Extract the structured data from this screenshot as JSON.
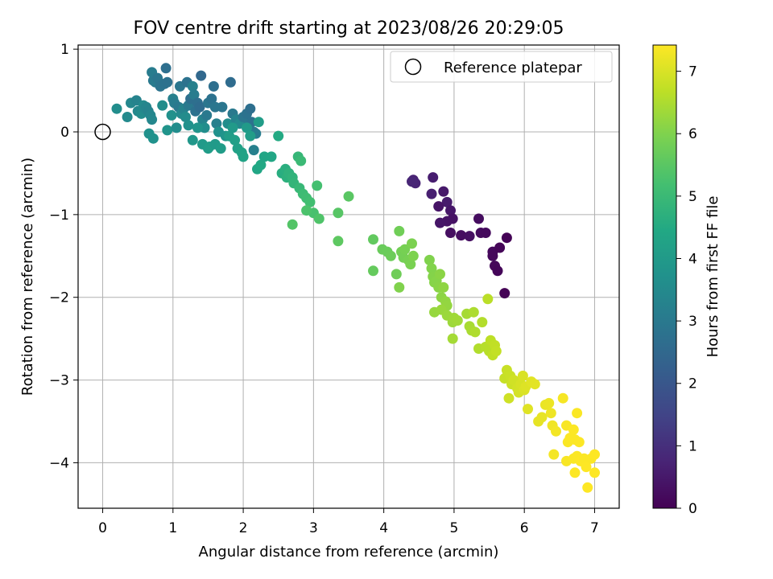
{
  "chart_data": {
    "type": "scatter",
    "title": "FOV centre drift starting at 2023/08/26 20:29:05",
    "xlabel": "Angular distance from reference (arcmin)",
    "ylabel": "Rotation from reference (arcmin)",
    "colorbar_label": "Hours from first FF file",
    "xlim": [
      -0.35,
      7.35
    ],
    "ylim": [
      -4.55,
      1.05
    ],
    "clim": [
      0,
      7.42
    ],
    "x_ticks": [
      0,
      1,
      2,
      3,
      4,
      5,
      6,
      7
    ],
    "x_tick_labels": [
      "0",
      "1",
      "2",
      "3",
      "4",
      "5",
      "6",
      "7"
    ],
    "y_ticks": [
      1,
      0,
      -1,
      -2,
      -3,
      -4
    ],
    "y_tick_labels": [
      "1",
      "0",
      "−1",
      "−2",
      "−3",
      "−4"
    ],
    "colorbar_ticks": [
      0,
      1,
      2,
      3,
      4,
      5,
      6,
      7
    ],
    "colorbar_tick_labels": [
      "0",
      "1",
      "2",
      "3",
      "4",
      "5",
      "6",
      "7"
    ],
    "colormap": "viridis",
    "grid": true,
    "legend": {
      "label": "Reference platepar",
      "placement": "top-right"
    },
    "reference_point": {
      "x": 0,
      "y": 0
    },
    "points": [
      [
        4.42,
        -0.58,
        0.7
      ],
      [
        4.45,
        -0.62,
        0.75
      ],
      [
        4.4,
        -0.6,
        0.78
      ],
      [
        4.7,
        -0.55,
        0.6
      ],
      [
        4.68,
        -0.75,
        0.65
      ],
      [
        4.85,
        -0.72,
        0.5
      ],
      [
        4.9,
        -0.85,
        0.55
      ],
      [
        4.95,
        -0.95,
        0.45
      ],
      [
        4.78,
        -0.9,
        0.4
      ],
      [
        4.9,
        -1.08,
        0.38
      ],
      [
        4.98,
        -1.05,
        0.36
      ],
      [
        4.8,
        -1.1,
        0.42
      ],
      [
        4.95,
        -1.22,
        0.3
      ],
      [
        5.1,
        -1.25,
        0.28
      ],
      [
        5.22,
        -1.26,
        0.32
      ],
      [
        5.35,
        -1.05,
        0.25
      ],
      [
        5.38,
        -1.22,
        0.22
      ],
      [
        5.45,
        -1.22,
        0.2
      ],
      [
        5.55,
        -1.45,
        0.18
      ],
      [
        5.55,
        -1.5,
        0.15
      ],
      [
        5.58,
        -1.62,
        0.12
      ],
      [
        5.65,
        -1.4,
        0.1
      ],
      [
        5.62,
        -1.68,
        0.08
      ],
      [
        5.75,
        -1.28,
        0.05
      ],
      [
        5.72,
        -1.95,
        0.02
      ],
      [
        0.2,
        0.28,
        3.6
      ],
      [
        0.35,
        0.18,
        3.5
      ],
      [
        0.4,
        0.35,
        3.4
      ],
      [
        0.48,
        0.38,
        3.3
      ],
      [
        0.5,
        0.25,
        3.45
      ],
      [
        0.55,
        0.22,
        3.55
      ],
      [
        0.58,
        0.32,
        3.5
      ],
      [
        0.6,
        0.28,
        3.4
      ],
      [
        0.62,
        0.3,
        3.35
      ],
      [
        0.65,
        0.25,
        3.3
      ],
      [
        0.68,
        0.2,
        3.38
      ],
      [
        0.7,
        0.15,
        3.42
      ],
      [
        0.72,
        0.62,
        3.0
      ],
      [
        0.7,
        0.72,
        3.1
      ],
      [
        0.75,
        0.6,
        3.05
      ],
      [
        0.78,
        0.65,
        2.9
      ],
      [
        0.82,
        0.55,
        2.85
      ],
      [
        0.88,
        0.58,
        2.8
      ],
      [
        0.9,
        0.77,
        2.7
      ],
      [
        0.92,
        0.6,
        2.75
      ],
      [
        0.66,
        -0.02,
        3.7
      ],
      [
        0.72,
        -0.08,
        3.75
      ],
      [
        0.85,
        0.32,
        3.6
      ],
      [
        0.92,
        0.02,
        3.8
      ],
      [
        0.98,
        0.2,
        3.7
      ],
      [
        1.0,
        0.4,
        3.2
      ],
      [
        1.02,
        0.35,
        3.1
      ],
      [
        1.05,
        0.05,
        3.6
      ],
      [
        1.08,
        0.3,
        3.0
      ],
      [
        1.1,
        0.55,
        2.9
      ],
      [
        1.12,
        0.22,
        3.5
      ],
      [
        1.15,
        0.28,
        3.3
      ],
      [
        1.18,
        0.18,
        3.55
      ],
      [
        1.2,
        0.6,
        2.8
      ],
      [
        1.22,
        0.32,
        3.0
      ],
      [
        1.25,
        0.4,
        2.7
      ],
      [
        1.28,
        0.55,
        3.2
      ],
      [
        1.3,
        0.45,
        3.1
      ],
      [
        1.32,
        0.25,
        2.8
      ],
      [
        1.35,
        0.35,
        2.7
      ],
      [
        1.38,
        0.3,
        2.6
      ],
      [
        1.4,
        0.68,
        2.5
      ],
      [
        1.42,
        0.15,
        3.3
      ],
      [
        1.45,
        0.05,
        3.6
      ],
      [
        1.48,
        0.2,
        3.0
      ],
      [
        1.5,
        0.35,
        2.9
      ],
      [
        1.55,
        0.4,
        2.8
      ],
      [
        1.58,
        0.55,
        2.7
      ],
      [
        1.6,
        0.3,
        2.9
      ],
      [
        1.62,
        0.1,
        3.2
      ],
      [
        1.65,
        0.0,
        3.7
      ],
      [
        1.7,
        0.3,
        2.9
      ],
      [
        1.75,
        -0.05,
        3.8
      ],
      [
        1.78,
        0.1,
        3.6
      ],
      [
        1.82,
        0.6,
        2.6
      ],
      [
        1.85,
        0.22,
        3.0
      ],
      [
        1.9,
        0.15,
        3.3
      ],
      [
        1.95,
        0.1,
        3.5
      ],
      [
        2.0,
        0.18,
        2.9
      ],
      [
        2.05,
        0.22,
        2.8
      ],
      [
        2.08,
        0.1,
        2.95
      ],
      [
        2.1,
        0.28,
        2.7
      ],
      [
        2.12,
        0.12,
        2.8
      ],
      [
        2.15,
        0.0,
        3.0
      ],
      [
        2.18,
        -0.02,
        3.1
      ],
      [
        2.15,
        -0.22,
        3.2
      ],
      [
        1.22,
        0.08,
        3.7
      ],
      [
        1.35,
        0.05,
        3.8
      ],
      [
        1.28,
        -0.1,
        3.9
      ],
      [
        1.42,
        -0.15,
        4.0
      ],
      [
        1.5,
        -0.2,
        4.05
      ],
      [
        1.52,
        -0.18,
        4.1
      ],
      [
        1.6,
        -0.15,
        4.0
      ],
      [
        1.68,
        -0.2,
        4.05
      ],
      [
        1.8,
        -0.05,
        4.1
      ],
      [
        1.85,
        0.05,
        4.0
      ],
      [
        1.88,
        -0.1,
        4.15
      ],
      [
        1.92,
        -0.2,
        4.2
      ],
      [
        1.98,
        -0.25,
        4.25
      ],
      [
        2.0,
        -0.3,
        4.3
      ],
      [
        2.05,
        0.05,
        4.0
      ],
      [
        2.1,
        -0.05,
        4.1
      ],
      [
        2.2,
        -0.45,
        4.4
      ],
      [
        2.25,
        -0.4,
        4.45
      ],
      [
        2.3,
        -0.3,
        4.35
      ],
      [
        2.22,
        0.12,
        4.05
      ],
      [
        2.4,
        -0.3,
        4.4
      ],
      [
        2.5,
        -0.05,
        4.5
      ],
      [
        2.55,
        -0.5,
        4.6
      ],
      [
        2.6,
        -0.45,
        4.65
      ],
      [
        2.62,
        -0.55,
        4.7
      ],
      [
        2.65,
        -0.5,
        4.75
      ],
      [
        2.7,
        -0.55,
        4.8
      ],
      [
        2.72,
        -0.62,
        4.85
      ],
      [
        2.78,
        -0.3,
        4.9
      ],
      [
        2.8,
        -0.68,
        4.95
      ],
      [
        2.82,
        -0.35,
        5.0
      ],
      [
        2.85,
        -0.75,
        5.05
      ],
      [
        2.9,
        -0.8,
        5.1
      ],
      [
        2.95,
        -0.85,
        5.15
      ],
      [
        3.05,
        -0.65,
        5.2
      ],
      [
        3.0,
        -0.98,
        5.25
      ],
      [
        2.9,
        -0.95,
        5.3
      ],
      [
        3.08,
        -1.05,
        5.35
      ],
      [
        2.7,
        -1.12,
        5.4
      ],
      [
        3.35,
        -0.98,
        5.45
      ],
      [
        3.5,
        -0.78,
        5.5
      ],
      [
        3.35,
        -1.32,
        5.55
      ],
      [
        3.85,
        -1.3,
        5.6
      ],
      [
        3.85,
        -1.68,
        5.65
      ],
      [
        3.98,
        -1.42,
        5.7
      ],
      [
        4.05,
        -1.45,
        5.72
      ],
      [
        4.1,
        -1.5,
        5.75
      ],
      [
        4.18,
        -1.72,
        5.78
      ],
      [
        4.22,
        -1.2,
        5.8
      ],
      [
        4.25,
        -1.45,
        5.82
      ],
      [
        4.28,
        -1.52,
        5.85
      ],
      [
        4.3,
        -1.42,
        5.88
      ],
      [
        4.35,
        -1.55,
        5.9
      ],
      [
        4.38,
        -1.6,
        5.92
      ],
      [
        4.4,
        -1.35,
        5.95
      ],
      [
        4.42,
        -1.5,
        5.97
      ],
      [
        4.22,
        -1.88,
        6.0
      ],
      [
        4.65,
        -1.55,
        6.0
      ],
      [
        4.68,
        -1.65,
        6.02
      ],
      [
        4.7,
        -1.75,
        6.05
      ],
      [
        4.72,
        -1.82,
        6.07
      ],
      [
        4.75,
        -1.8,
        6.08
      ],
      [
        4.78,
        -1.88,
        6.1
      ],
      [
        4.8,
        -1.72,
        6.12
      ],
      [
        4.82,
        -2.0,
        6.15
      ],
      [
        4.85,
        -1.88,
        6.17
      ],
      [
        4.88,
        -2.05,
        6.2
      ],
      [
        4.9,
        -2.1,
        6.22
      ],
      [
        4.72,
        -2.18,
        6.25
      ],
      [
        4.82,
        -2.15,
        6.28
      ],
      [
        4.9,
        -2.22,
        6.3
      ],
      [
        4.98,
        -2.3,
        6.32
      ],
      [
        5.0,
        -2.25,
        6.35
      ],
      [
        5.05,
        -2.28,
        6.37
      ],
      [
        4.98,
        -2.5,
        6.4
      ],
      [
        5.18,
        -2.2,
        6.42
      ],
      [
        5.22,
        -2.35,
        6.45
      ],
      [
        5.25,
        -2.4,
        6.47
      ],
      [
        5.28,
        -2.18,
        6.5
      ],
      [
        5.3,
        -2.42,
        6.52
      ],
      [
        5.35,
        -2.62,
        6.55
      ],
      [
        5.4,
        -2.3,
        6.57
      ],
      [
        5.45,
        -2.6,
        6.6
      ],
      [
        5.5,
        -2.65,
        6.62
      ],
      [
        5.48,
        -2.02,
        6.65
      ],
      [
        5.52,
        -2.52,
        6.68
      ],
      [
        5.55,
        -2.7,
        6.7
      ],
      [
        5.58,
        -2.58,
        6.72
      ],
      [
        5.6,
        -2.65,
        6.75
      ],
      [
        5.72,
        -2.98,
        6.78
      ],
      [
        5.75,
        -2.88,
        6.8
      ],
      [
        5.8,
        -2.95,
        6.82
      ],
      [
        5.82,
        -3.05,
        6.85
      ],
      [
        5.78,
        -3.22,
        6.87
      ],
      [
        5.85,
        -3.0,
        6.9
      ],
      [
        5.9,
        -3.1,
        6.92
      ],
      [
        5.92,
        -3.15,
        6.95
      ],
      [
        5.95,
        -3.05,
        6.97
      ],
      [
        5.98,
        -2.95,
        7.0
      ],
      [
        6.0,
        -3.12,
        7.02
      ],
      [
        6.02,
        -3.08,
        7.05
      ],
      [
        6.05,
        -3.35,
        7.07
      ],
      [
        6.1,
        -3.02,
        7.1
      ],
      [
        6.15,
        -3.05,
        7.12
      ],
      [
        6.2,
        -3.5,
        7.15
      ],
      [
        6.25,
        -3.45,
        7.17
      ],
      [
        6.3,
        -3.3,
        7.2
      ],
      [
        6.35,
        -3.28,
        7.22
      ],
      [
        6.38,
        -3.4,
        7.25
      ],
      [
        6.4,
        -3.55,
        7.27
      ],
      [
        6.45,
        -3.62,
        7.3
      ],
      [
        6.42,
        -3.9,
        7.32
      ],
      [
        6.55,
        -3.22,
        7.34
      ],
      [
        6.6,
        -3.55,
        7.36
      ],
      [
        6.62,
        -3.75,
        7.38
      ],
      [
        6.65,
        -3.7,
        7.4
      ],
      [
        6.7,
        -3.6,
        7.41
      ],
      [
        6.72,
        -3.72,
        7.4
      ],
      [
        6.75,
        -3.4,
        7.38
      ],
      [
        6.6,
        -3.98,
        7.36
      ],
      [
        6.7,
        -3.95,
        7.39
      ],
      [
        6.75,
        -3.92,
        7.4
      ],
      [
        6.78,
        -3.75,
        7.41
      ],
      [
        6.8,
        -3.98,
        7.42
      ],
      [
        6.85,
        -3.95,
        7.4
      ],
      [
        6.72,
        -4.12,
        7.41
      ],
      [
        6.88,
        -4.05,
        7.42
      ],
      [
        6.9,
        -4.3,
        7.42
      ],
      [
        6.95,
        -3.95,
        7.4
      ],
      [
        7.0,
        -3.9,
        7.42
      ],
      [
        7.0,
        -4.12,
        7.42
      ]
    ]
  }
}
